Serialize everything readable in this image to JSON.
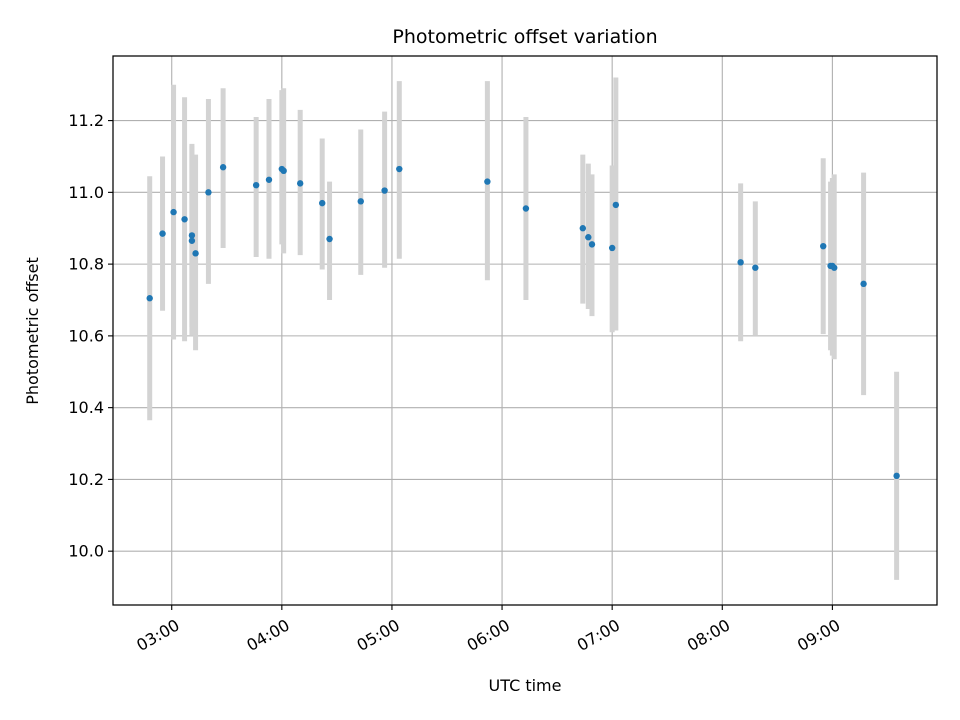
{
  "chart_data": {
    "type": "scatter",
    "title": "Photometric offset variation",
    "xlabel": "UTC time",
    "ylabel": "Photometric offset",
    "x_axis": {
      "unit": "UTC time (HH:MM)",
      "range": [
        "02:28",
        "09:57"
      ],
      "ticks": [
        "03:00",
        "04:00",
        "05:00",
        "06:00",
        "07:00",
        "08:00",
        "09:00"
      ],
      "tick_labels_rotated": true
    },
    "y_axis": {
      "range": [
        9.85,
        11.38
      ],
      "ticks": [
        10.0,
        10.2,
        10.4,
        10.6,
        10.8,
        11.0,
        11.2
      ],
      "tick_labels": [
        "10.0",
        "10.2",
        "10.4",
        "10.6",
        "10.8",
        "11.0",
        "11.2"
      ]
    },
    "grid": true,
    "legend": "none",
    "colors": {
      "points": "#1f77b4",
      "error_bars": "#d3d3d3",
      "grid": "#b0b0b0"
    },
    "series": [
      {
        "points": [
          {
            "x": "02:48",
            "y": 10.705,
            "ylow": 10.365,
            "yhigh": 11.045
          },
          {
            "x": "02:55",
            "y": 10.885,
            "ylow": 10.67,
            "yhigh": 11.1
          },
          {
            "x": "03:01",
            "y": 10.945,
            "ylow": 10.59,
            "yhigh": 11.3
          },
          {
            "x": "03:07",
            "y": 10.925,
            "ylow": 10.585,
            "yhigh": 11.265
          },
          {
            "x": "03:11",
            "y": 10.88,
            "ylow": 10.625,
            "yhigh": 11.135
          },
          {
            "x": "03:11",
            "y": 10.865,
            "ylow": 10.6,
            "yhigh": 11.13
          },
          {
            "x": "03:13",
            "y": 10.83,
            "ylow": 10.56,
            "yhigh": 11.105
          },
          {
            "x": "03:20",
            "y": 11.0,
            "ylow": 10.745,
            "yhigh": 11.26
          },
          {
            "x": "03:28",
            "y": 11.07,
            "ylow": 10.845,
            "yhigh": 11.29
          },
          {
            "x": "03:46",
            "y": 11.02,
            "ylow": 10.82,
            "yhigh": 11.21
          },
          {
            "x": "03:53",
            "y": 11.035,
            "ylow": 10.815,
            "yhigh": 11.26
          },
          {
            "x": "04:00",
            "y": 11.065,
            "ylow": 10.855,
            "yhigh": 11.285
          },
          {
            "x": "04:01",
            "y": 11.06,
            "ylow": 10.83,
            "yhigh": 11.29
          },
          {
            "x": "04:10",
            "y": 11.025,
            "ylow": 10.825,
            "yhigh": 11.23
          },
          {
            "x": "04:22",
            "y": 10.97,
            "ylow": 10.785,
            "yhigh": 11.15
          },
          {
            "x": "04:26",
            "y": 10.87,
            "ylow": 10.7,
            "yhigh": 11.03
          },
          {
            "x": "04:43",
            "y": 10.975,
            "ylow": 10.77,
            "yhigh": 11.175
          },
          {
            "x": "04:56",
            "y": 11.005,
            "ylow": 10.79,
            "yhigh": 11.225
          },
          {
            "x": "05:04",
            "y": 11.065,
            "ylow": 10.815,
            "yhigh": 11.31
          },
          {
            "x": "05:52",
            "y": 11.03,
            "ylow": 10.755,
            "yhigh": 11.31
          },
          {
            "x": "06:13",
            "y": 10.955,
            "ylow": 10.7,
            "yhigh": 11.21
          },
          {
            "x": "06:44",
            "y": 10.9,
            "ylow": 10.69,
            "yhigh": 11.105
          },
          {
            "x": "06:47",
            "y": 10.875,
            "ylow": 10.675,
            "yhigh": 11.08
          },
          {
            "x": "06:49",
            "y": 10.855,
            "ylow": 10.655,
            "yhigh": 11.05
          },
          {
            "x": "07:00",
            "y": 10.845,
            "ylow": 10.61,
            "yhigh": 11.075
          },
          {
            "x": "07:02",
            "y": 10.965,
            "ylow": 10.615,
            "yhigh": 11.32
          },
          {
            "x": "08:10",
            "y": 10.805,
            "ylow": 10.585,
            "yhigh": 11.025
          },
          {
            "x": "08:18",
            "y": 10.79,
            "ylow": 10.6,
            "yhigh": 10.975
          },
          {
            "x": "08:55",
            "y": 10.85,
            "ylow": 10.605,
            "yhigh": 11.095
          },
          {
            "x": "08:59",
            "y": 10.795,
            "ylow": 10.56,
            "yhigh": 11.03
          },
          {
            "x": "09:00",
            "y": 10.795,
            "ylow": 10.545,
            "yhigh": 11.04
          },
          {
            "x": "09:01",
            "y": 10.79,
            "ylow": 10.535,
            "yhigh": 11.05
          },
          {
            "x": "09:17",
            "y": 10.745,
            "ylow": 10.435,
            "yhigh": 11.055
          },
          {
            "x": "09:35",
            "y": 10.21,
            "ylow": 9.92,
            "yhigh": 10.5
          }
        ]
      }
    ]
  }
}
